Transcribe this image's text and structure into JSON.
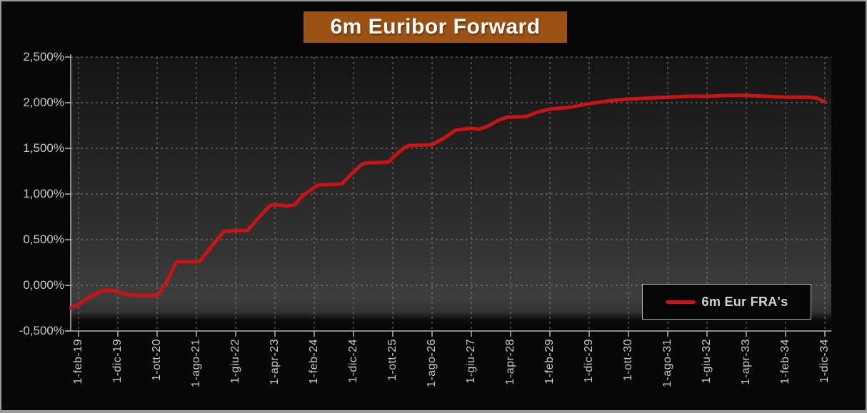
{
  "title": "6m Euribor Forward",
  "colors": {
    "frame_border": "#9a9a9a",
    "outer_background": "#070707",
    "title_background": "#9c5212",
    "title_text": "#ffffff",
    "line": "#c81414",
    "gridline": "#a0a0a0",
    "axis": "#b5b5b5",
    "axis_label": "#c9c9c9",
    "legend_border": "#b3b3b3",
    "legend_background": "#060606"
  },
  "chart_data": {
    "type": "line",
    "title": "6m Euribor Forward",
    "xlabel": "",
    "ylabel": "",
    "grid": "dashed",
    "ylim": [
      -0.5,
      2.5
    ],
    "y_tick_step": 0.5,
    "y_tick_labels": [
      "2,500%",
      "2,000%",
      "1,500%",
      "1,000%",
      "0,500%",
      "0,000%",
      "-0,500%"
    ],
    "categories": [
      "1-feb-19",
      "1-dic-19",
      "1-ott-20",
      "1-ago-21",
      "1-giu-22",
      "1-apr-23",
      "1-feb-24",
      "1-dic-24",
      "1-ott-25",
      "1-ago-26",
      "1-giu-27",
      "1-apr-28",
      "1-feb-29",
      "1-dic-29",
      "1-ott-30",
      "1-ago-31",
      "1-giu-32",
      "1-apr-33",
      "1-feb-34",
      "1-dic-34"
    ],
    "months_per_category_tick": 10,
    "legend": {
      "label": "6m Eur FRA's",
      "position": "bottom-right"
    },
    "series": [
      {
        "name": "6m Eur FRA's",
        "color": "#c81414",
        "x_unit": "months_since_first_tick",
        "y_unit": "percent",
        "points": [
          [
            -2,
            -0.25
          ],
          [
            0,
            -0.21
          ],
          [
            2,
            -0.15
          ],
          [
            4,
            -0.1
          ],
          [
            6,
            -0.06
          ],
          [
            8,
            -0.05
          ],
          [
            10,
            -0.07
          ],
          [
            12,
            -0.1
          ],
          [
            16,
            -0.11
          ],
          [
            20,
            -0.11
          ],
          [
            22,
            0.0
          ],
          [
            24,
            0.18
          ],
          [
            25,
            0.26
          ],
          [
            30,
            0.26
          ],
          [
            31,
            0.27
          ],
          [
            33,
            0.38
          ],
          [
            36,
            0.54
          ],
          [
            37,
            0.59
          ],
          [
            40,
            0.6
          ],
          [
            43,
            0.6
          ],
          [
            45,
            0.7
          ],
          [
            48,
            0.84
          ],
          [
            49,
            0.88
          ],
          [
            51,
            0.88
          ],
          [
            53,
            0.87
          ],
          [
            55,
            0.88
          ],
          [
            57,
            0.98
          ],
          [
            60,
            1.07
          ],
          [
            61,
            1.1
          ],
          [
            67,
            1.11
          ],
          [
            69,
            1.2
          ],
          [
            72,
            1.32
          ],
          [
            73,
            1.34
          ],
          [
            79,
            1.35
          ],
          [
            80,
            1.4
          ],
          [
            83,
            1.51
          ],
          [
            84,
            1.53
          ],
          [
            90,
            1.54
          ],
          [
            93,
            1.61
          ],
          [
            96,
            1.7
          ],
          [
            100,
            1.72
          ],
          [
            102,
            1.71
          ],
          [
            104,
            1.74
          ],
          [
            107,
            1.81
          ],
          [
            109,
            1.84
          ],
          [
            114,
            1.85
          ],
          [
            117,
            1.9
          ],
          [
            120,
            1.93
          ],
          [
            125,
            1.95
          ],
          [
            130,
            1.99
          ],
          [
            135,
            2.02
          ],
          [
            140,
            2.04
          ],
          [
            145,
            2.05
          ],
          [
            150,
            2.06
          ],
          [
            155,
            2.07
          ],
          [
            160,
            2.07
          ],
          [
            165,
            2.08
          ],
          [
            170,
            2.08
          ],
          [
            175,
            2.07
          ],
          [
            180,
            2.06
          ],
          [
            186,
            2.06
          ],
          [
            188,
            2.05
          ],
          [
            190,
            2.01
          ]
        ]
      }
    ]
  }
}
